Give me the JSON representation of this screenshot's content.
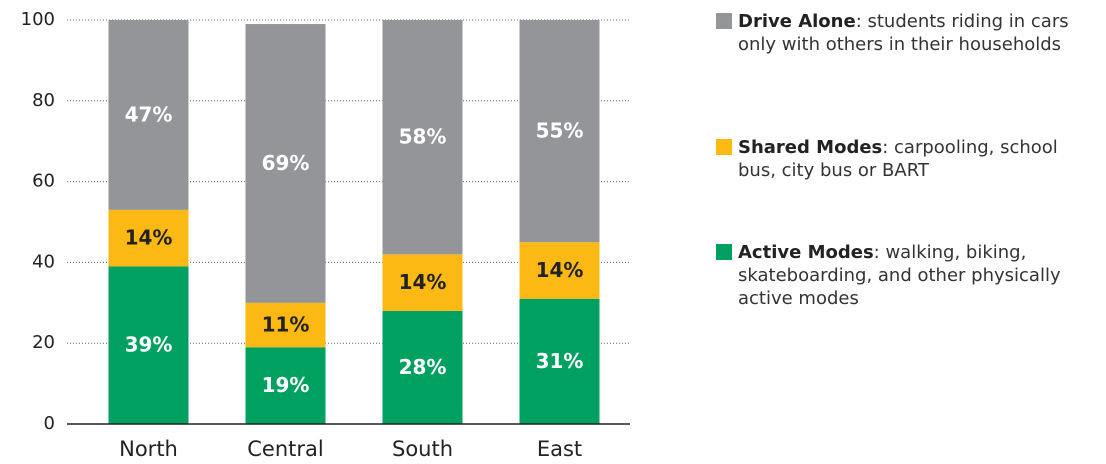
{
  "chart_data": {
    "type": "stacked_bar",
    "categories": [
      "North",
      "Central",
      "South",
      "East"
    ],
    "series": [
      {
        "name": "Drive Alone",
        "description": ": students riding in cars only with others in their households",
        "color": "#939598",
        "values": [
          47,
          69,
          58,
          55
        ],
        "value_labels": [
          "47%",
          "69%",
          "58%",
          "55%"
        ]
      },
      {
        "name": "Shared Modes",
        "description": ": carpooling, school bus, city bus or BART",
        "color": "#fdb913",
        "values": [
          14,
          11,
          14,
          14
        ],
        "value_labels": [
          "14%",
          "11%",
          "14%",
          "14%"
        ]
      },
      {
        "name": "Active Modes",
        "description": ": walking, biking, skateboarding, and other physically active modes",
        "color": "#00a160",
        "values": [
          39,
          19,
          28,
          31
        ],
        "value_labels": [
          "39%",
          "19%",
          "28%",
          "31%"
        ]
      }
    ],
    "ylim": [
      0,
      100
    ],
    "yticks": [
      0,
      20,
      40,
      60,
      80,
      100
    ],
    "grid": true
  }
}
